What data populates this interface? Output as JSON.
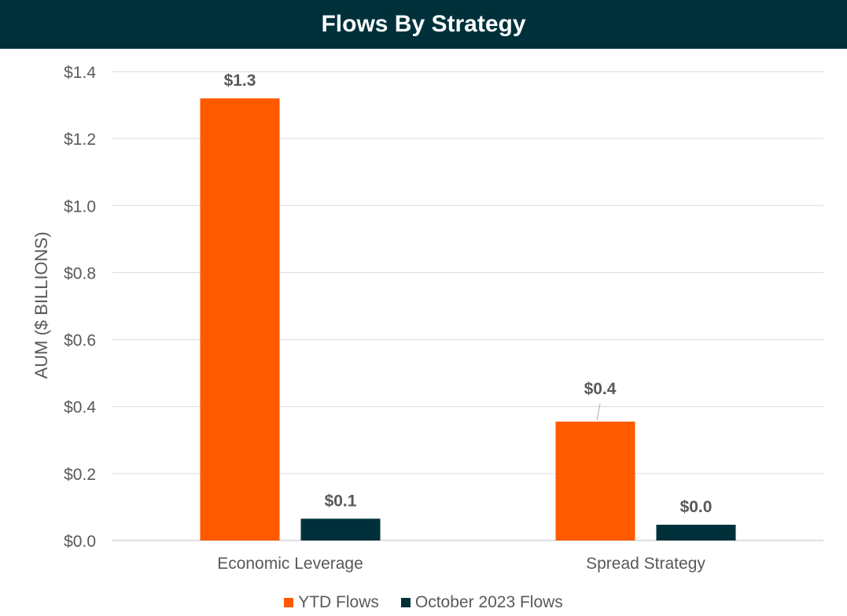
{
  "header": {
    "title": "Flows By Strategy"
  },
  "colors": {
    "header_bg": "#00313b",
    "ytd": "#ff5a00",
    "october": "#00313b",
    "grid": "#d9d9d9",
    "text": "#595959"
  },
  "chart_data": {
    "type": "bar",
    "title": "Flows By Strategy",
    "ylabel": "AUM ($ BILLIONS)",
    "xlabel": "",
    "categories": [
      "Economic Leverage",
      "Spread Strategy"
    ],
    "series": [
      {
        "name": "YTD Flows",
        "values": [
          1.32,
          0.355
        ],
        "labels": [
          "$1.3",
          "$0.4"
        ]
      },
      {
        "name": "October 2023 Flows",
        "values": [
          0.065,
          0.047
        ],
        "labels": [
          "$0.1",
          "$0.0"
        ]
      }
    ],
    "yticks": [
      "$0.0",
      "$0.2",
      "$0.4",
      "$0.6",
      "$0.8",
      "$1.0",
      "$1.2",
      "$1.4"
    ],
    "ylim": [
      0,
      1.4
    ],
    "grid": true,
    "legend": "bottom"
  }
}
